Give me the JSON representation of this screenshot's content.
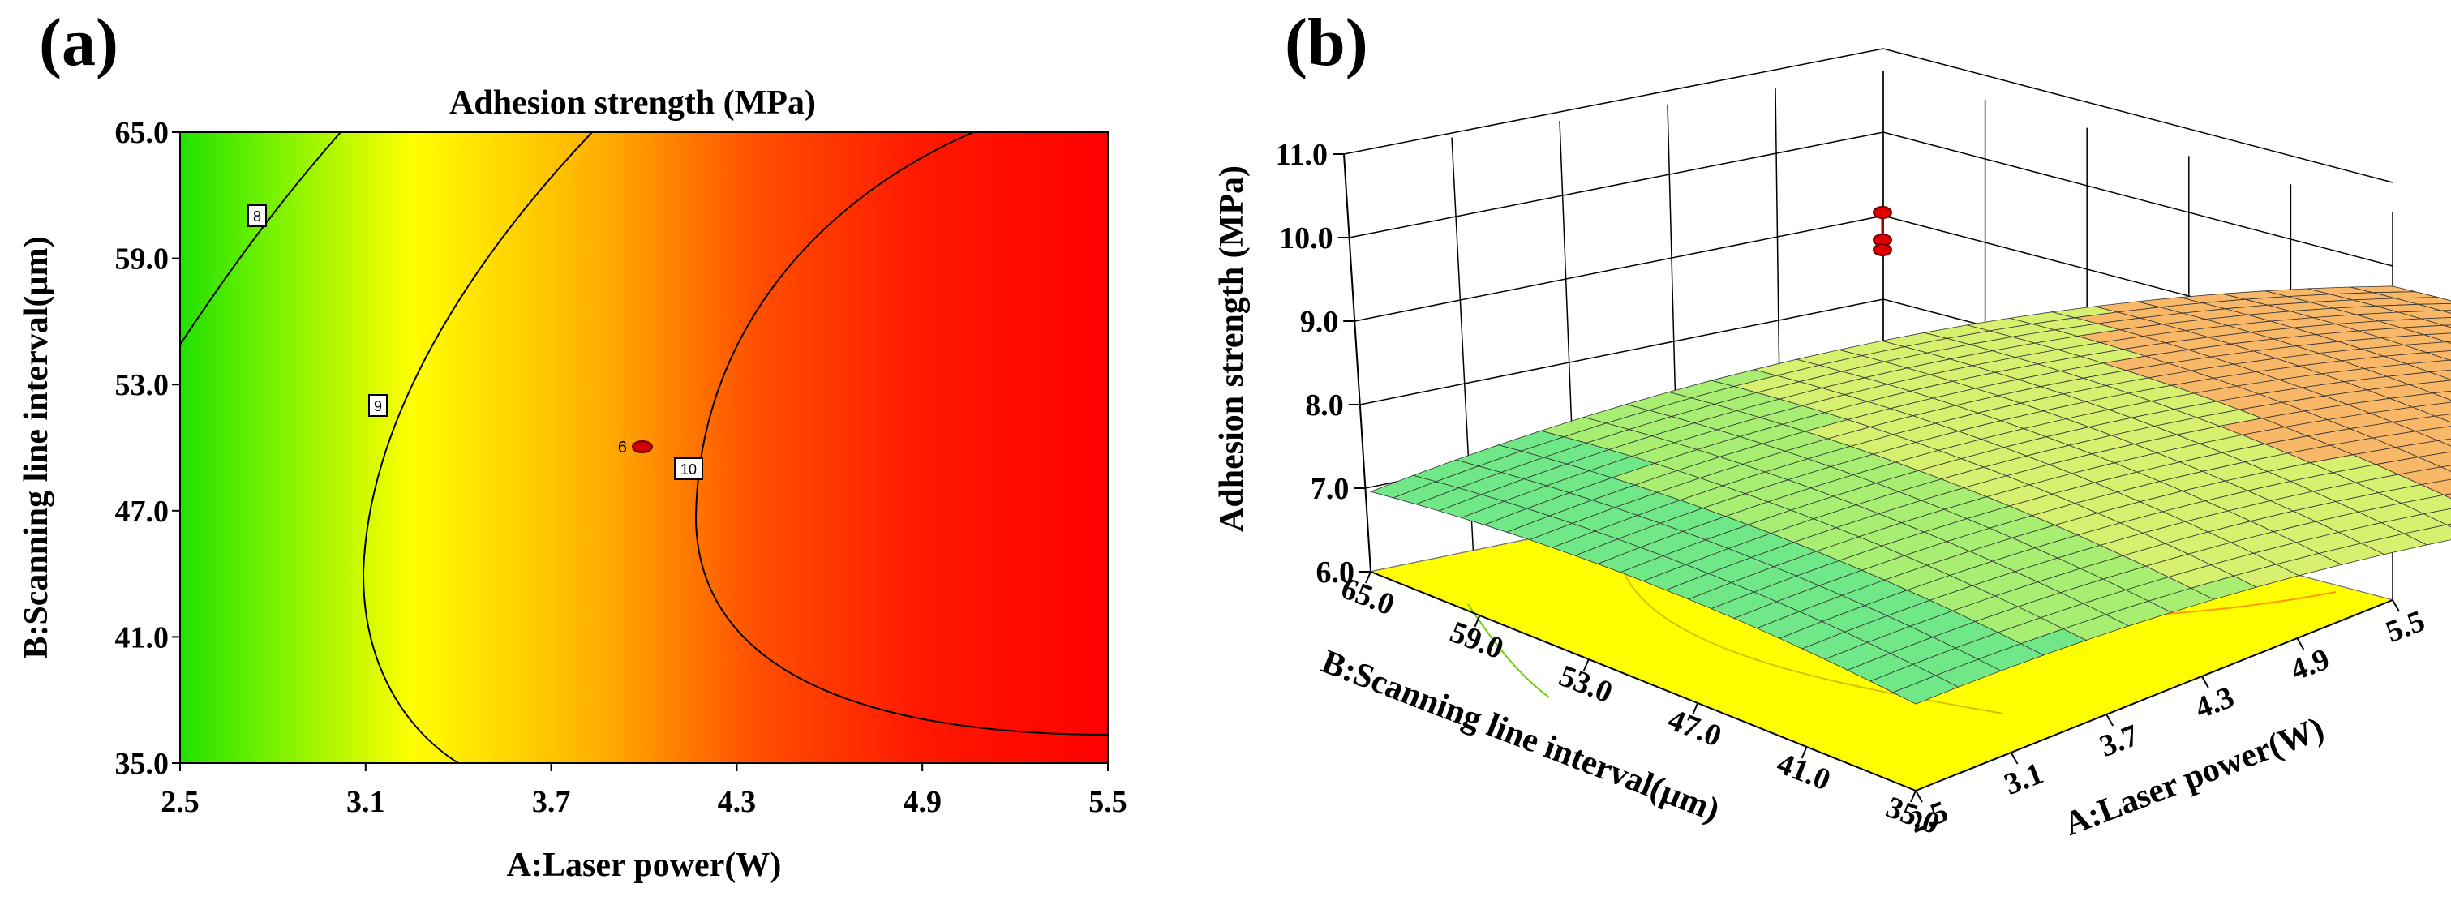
{
  "chart_data": [
    {
      "panel": "(a)",
      "type": "contour",
      "title": "Adhesion strength (MPa)",
      "xlabel": "A:Laser power(W)",
      "ylabel": "B:Scanning line interval(µm)",
      "xlim": [
        2.5,
        5.5
      ],
      "ylim": [
        35.0,
        65.0
      ],
      "xticks": [
        "2.5",
        "3.1",
        "3.7",
        "4.3",
        "4.9",
        "5.5"
      ],
      "yticks": [
        "35.0",
        "41.0",
        "47.0",
        "53.0",
        "59.0",
        "65.0"
      ],
      "contour_levels": [
        "8",
        "9",
        "10"
      ],
      "design_point": {
        "x": 4.0,
        "y": 50.0,
        "label": "6"
      },
      "colormap": {
        "low": "#00e000",
        "mid": "#ffff00",
        "high": "#ff0000"
      }
    },
    {
      "panel": "(b)",
      "type": "surface",
      "xlabel": "A:Laser power(W)",
      "ylabel": "B:Scanning line interval(µm)",
      "zlabel": "Adhesion strength (MPa)",
      "xlim": [
        2.5,
        5.5
      ],
      "ylim": [
        35.0,
        65.0
      ],
      "zlim": [
        6.0,
        11.0
      ],
      "xticks": [
        "2.5",
        "3.1",
        "3.7",
        "4.3",
        "4.9",
        "5.5"
      ],
      "yticks": [
        "65.0",
        "59.0",
        "53.0",
        "47.0",
        "41.0",
        "35.0"
      ],
      "zticks": [
        "6.0",
        "7.0",
        "8.0",
        "9.0",
        "10.0",
        "11.0"
      ],
      "design_points": [
        {
          "x": 4.0,
          "y": 50.0,
          "z": 10.3
        },
        {
          "x": 4.0,
          "y": 50.0,
          "z": 10.0
        },
        {
          "x": 4.0,
          "y": 50.0,
          "z": 9.9
        }
      ],
      "floor_color": "#ffff00"
    }
  ]
}
